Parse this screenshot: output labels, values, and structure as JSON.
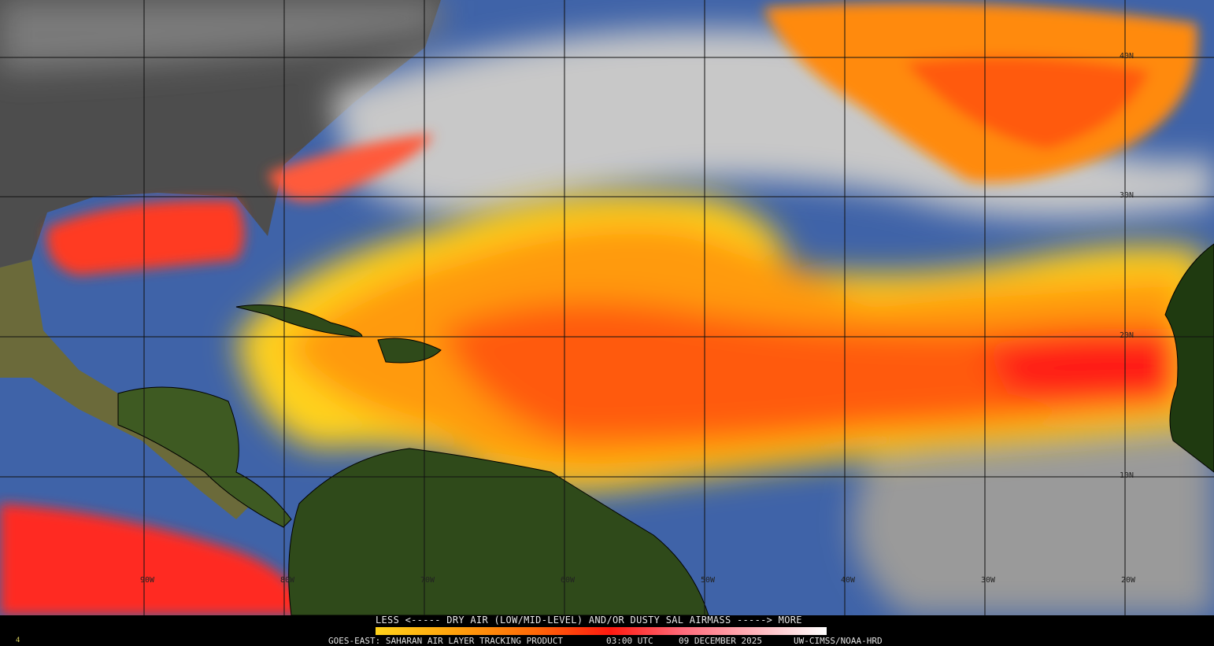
{
  "legend": {
    "title": "LESS <----- DRY AIR (LOW/MID-LEVEL) AND/OR DUSTY SAL AIRMASS -----> MORE",
    "colors": [
      "#ffd21a",
      "#ffa00c",
      "#ff6a08",
      "#ff1a10",
      "#ff6a7a",
      "#ffb3ba",
      "#ffffff"
    ]
  },
  "footer": {
    "product": "GOES-EAST: SAHARAN AIR LAYER TRACKING PRODUCT",
    "time": "03:00 UTC",
    "date": "09 DECEMBER 2025",
    "credit": "UW-CIMSS/NOAA-HRD",
    "corner_mark": "4"
  },
  "grid": {
    "longitudes": [
      "90W",
      "80W",
      "70W",
      "60W",
      "50W",
      "40W",
      "30W",
      "20W"
    ],
    "latitudes": [
      "40N",
      "30N",
      "20N",
      "10N"
    ]
  },
  "colors": {
    "ocean": "#3f63a8",
    "land_north_america": "#4a4a4a",
    "land_south_america": "#2f4a1a",
    "clouds": "#b8b8b8",
    "sal_core": "#ff2a1a"
  }
}
